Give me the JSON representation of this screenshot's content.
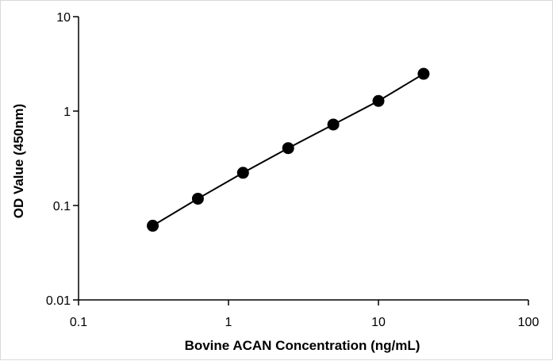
{
  "chart_data": {
    "type": "scatter",
    "title": "",
    "xlabel": "Bovine ACAN Concentration (ng/mL)",
    "ylabel": "OD Value (450nm)",
    "xscale": "log",
    "yscale": "log",
    "xlim": [
      0.1,
      100
    ],
    "ylim": [
      0.01,
      10
    ],
    "x_ticks": [
      "0.1",
      "1",
      "10",
      "100"
    ],
    "y_ticks": [
      "0.01",
      "0.1",
      "1",
      "10"
    ],
    "grid": false,
    "legend": "none",
    "series": [
      {
        "x": [
          0.3125,
          0.625,
          1.25,
          2.5,
          5,
          10,
          20
        ],
        "y": [
          0.061,
          0.118,
          0.222,
          0.405,
          0.72,
          1.28,
          2.48
        ],
        "marker": "circle",
        "line": true,
        "color": "#000000"
      }
    ]
  }
}
